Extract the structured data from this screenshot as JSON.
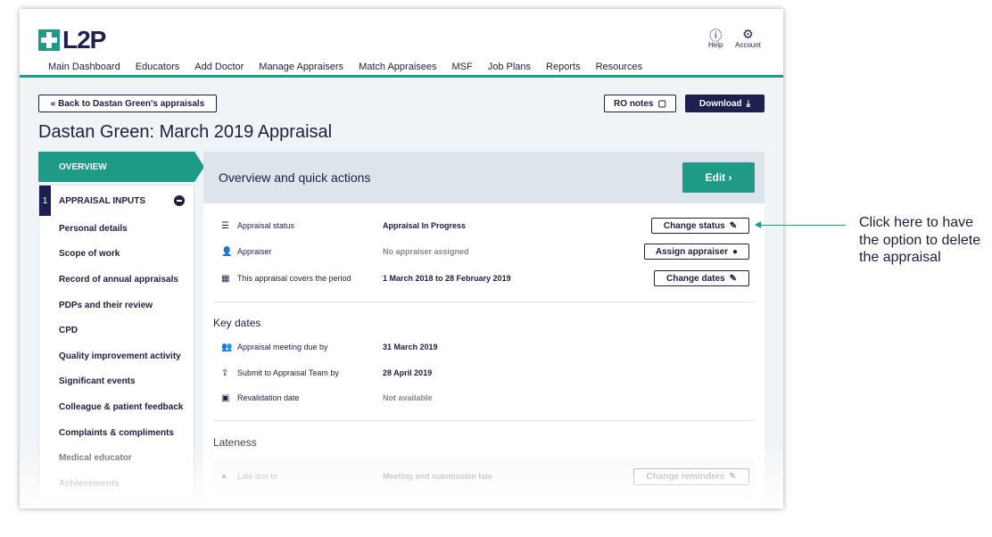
{
  "brand": {
    "logo": "L2P",
    "accent": "#1e9a87",
    "navy": "#1d1f4f"
  },
  "nav": [
    "Main Dashboard",
    "Educators",
    "Add Doctor",
    "Manage Appraisers",
    "Match Appraisees",
    "MSF",
    "Job Plans",
    "Reports",
    "Resources"
  ],
  "util": {
    "help": "Help",
    "account": "Account"
  },
  "back": "« Back to Dastan Green's appraisals",
  "ro_notes": "RO notes",
  "download": "Download",
  "title": "Dastan Green: March 2019 Appraisal",
  "sidebar": {
    "overview": "OVERVIEW",
    "section_num": "1",
    "section": "APPRAISAL INPUTS",
    "items": [
      "Personal details",
      "Scope of work",
      "Record of annual appraisals",
      "PDPs and their review",
      "CPD",
      "Quality improvement activity",
      "Significant events",
      "Colleague & patient feedback",
      "Complaints & compliments",
      "Medical educator",
      "Achievements"
    ]
  },
  "main": {
    "heading": "Overview and quick actions",
    "edit": "Edit ›",
    "rows": [
      {
        "icon": "list-icon",
        "label": "Appraisal status",
        "value": "Appraisal In Progress",
        "button": "Change status"
      },
      {
        "icon": "user-check-icon",
        "label": "Appraiser",
        "value": "No appraiser assigned",
        "button": "Assign appraiser"
      },
      {
        "icon": "calendar-icon",
        "label": "This appraisal covers the period",
        "value": "1 March 2018 to 28 February 2019",
        "button": "Change dates"
      }
    ],
    "key_dates_title": "Key dates",
    "key_dates": [
      {
        "icon": "users-icon",
        "label": "Appraisal meeting due by",
        "value": "31 March 2019"
      },
      {
        "icon": "share-icon",
        "label": "Submit to Appraisal Team by",
        "value": "28 April 2019"
      },
      {
        "icon": "calendar-check-icon",
        "label": "Revalidation date",
        "value": "Not available"
      }
    ],
    "lateness_title": "Lateness",
    "lateness": {
      "label": "Late due to",
      "value": "Meeting and submission late",
      "button": "Change reminders"
    }
  },
  "annotation": "Click here to have the option to delete the appraisal"
}
